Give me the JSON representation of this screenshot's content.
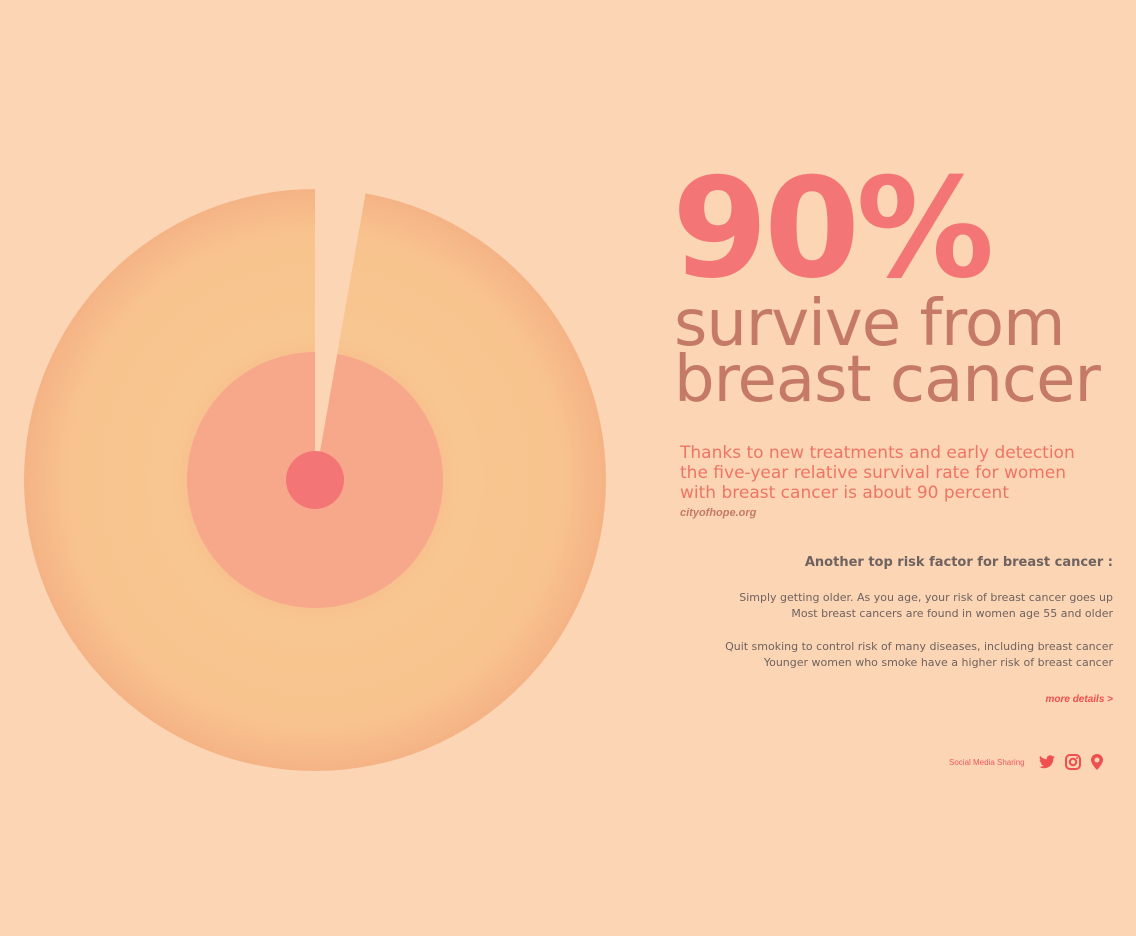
{
  "headline": {
    "percent": "90%",
    "line1": "survive from",
    "line2": "breast cancer"
  },
  "intro": {
    "lines": [
      "Thanks to new treatments and early detection",
      "the five-year relative survival rate for women",
      "with breast cancer is about 90 percent"
    ],
    "source": "cityofhope.org"
  },
  "risk": {
    "title": "Another top risk factor for breast cancer :",
    "block1": [
      "Simply getting older. As you age, your risk of breast cancer goes up",
      "Most breast cancers are found in women age 55 and older"
    ],
    "block2": [
      "Quit smoking to control risk of many diseases, including breast cancer",
      "Younger women who smoke have a higher risk of breast cancer"
    ],
    "more": "more details >"
  },
  "social": {
    "label": "Social Media Sharing",
    "icons": [
      "twitter-icon",
      "instagram-icon",
      "location-pin-icon"
    ]
  },
  "chart_data": {
    "type": "pie",
    "values": [
      90,
      10
    ],
    "colors": {
      "outer": "#f8c690",
      "inner": "#f8a88a",
      "center": "#f47575",
      "background": "#fcd5b4"
    }
  }
}
